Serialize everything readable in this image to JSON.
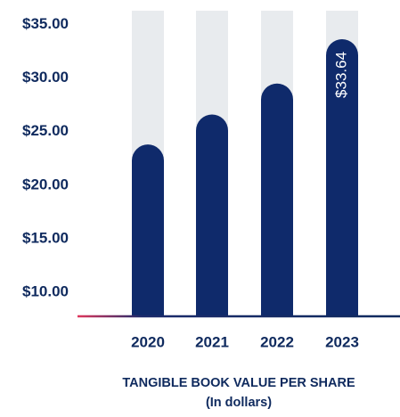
{
  "chart_data": {
    "type": "bar",
    "title": "TANGIBLE BOOK VALUE PER SHARE",
    "subtitle": "(In dollars)",
    "categories": [
      "2020",
      "2021",
      "2022",
      "2023"
    ],
    "values": [
      23.8,
      26.6,
      29.5,
      33.64
    ],
    "value_labels": [
      null,
      null,
      null,
      "$33.64"
    ],
    "color": "#0f2a6b",
    "track_color": "#e8ebee",
    "ylim": [
      7.75,
      36.3
    ],
    "yticks": [
      {
        "value": 10,
        "label": "$10.00"
      },
      {
        "value": 15,
        "label": "$15.00"
      },
      {
        "value": 20,
        "label": "$20.00"
      },
      {
        "value": 25,
        "label": "$25.00"
      },
      {
        "value": 30,
        "label": "$30.00"
      },
      {
        "value": 35,
        "label": "$35.00"
      }
    ]
  }
}
